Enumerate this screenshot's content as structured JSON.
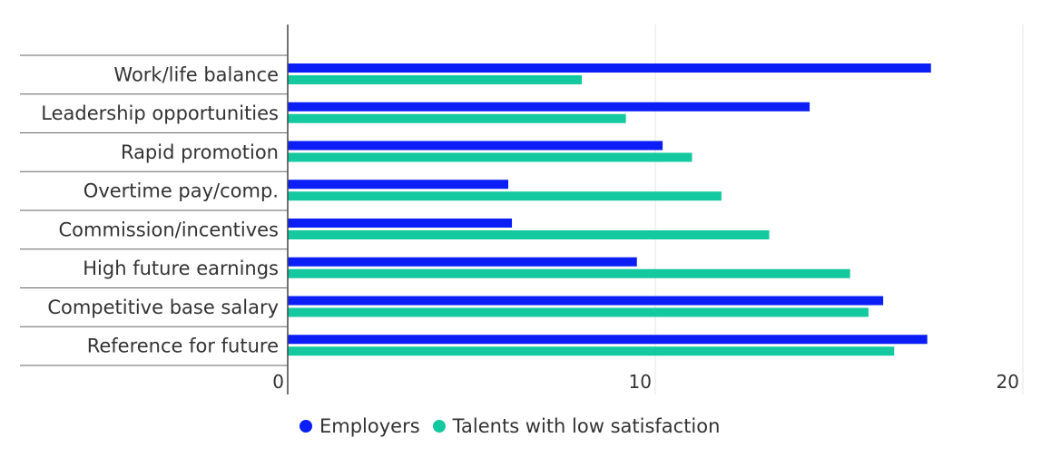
{
  "chart_data": {
    "type": "bar",
    "orientation": "horizontal",
    "title": "",
    "xlabel": "",
    "ylabel": "",
    "categories": [
      "Work/life balance",
      "Leadership opportunities",
      "Rapid promotion",
      "Overtime pay/comp.",
      "Commission/incentives",
      "High future earnings",
      "Competitive base salary",
      "Reference for future"
    ],
    "series": [
      {
        "name": "Employers",
        "color": "#0a1ef5",
        "values": [
          17.5,
          14.2,
          10.2,
          6.0,
          6.1,
          9.5,
          16.2,
          17.4
        ]
      },
      {
        "name": "Talents with low satisfaction",
        "color": "#14c8a0",
        "values": [
          8.0,
          9.2,
          11.0,
          11.8,
          13.1,
          15.3,
          15.8,
          16.5
        ]
      }
    ],
    "xlim": [
      0,
      20
    ],
    "xticks": [
      "0",
      "10",
      "20"
    ],
    "grid": true,
    "legend_position": "bottom"
  }
}
